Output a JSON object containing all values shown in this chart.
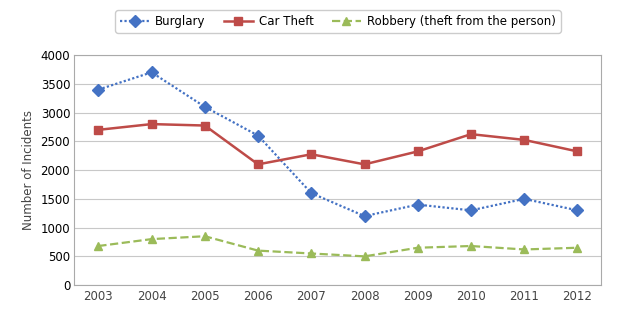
{
  "years": [
    2003,
    2004,
    2005,
    2006,
    2007,
    2008,
    2009,
    2010,
    2011,
    2012
  ],
  "burglary": [
    3400,
    3700,
    3100,
    2600,
    1600,
    1200,
    1400,
    1300,
    1500,
    1300
  ],
  "car_theft": [
    2700,
    2800,
    2775,
    2100,
    2275,
    2100,
    2325,
    2625,
    2525,
    2325
  ],
  "robbery": [
    680,
    800,
    850,
    600,
    550,
    500,
    650,
    680,
    620,
    650
  ],
  "burglary_color": "#4472C4",
  "car_theft_color": "#BE4B48",
  "robbery_color": "#9BBB59",
  "ylabel": "Number of Incidents",
  "ylim": [
    0,
    4000
  ],
  "yticks": [
    0,
    500,
    1000,
    1500,
    2000,
    2500,
    3000,
    3500,
    4000
  ],
  "legend_labels": [
    "Burglary",
    "Car Theft",
    "Robbery (theft from the person)"
  ],
  "background_color": "#ffffff",
  "grid_color": "#c8c8c8",
  "spine_color": "#aaaaaa"
}
